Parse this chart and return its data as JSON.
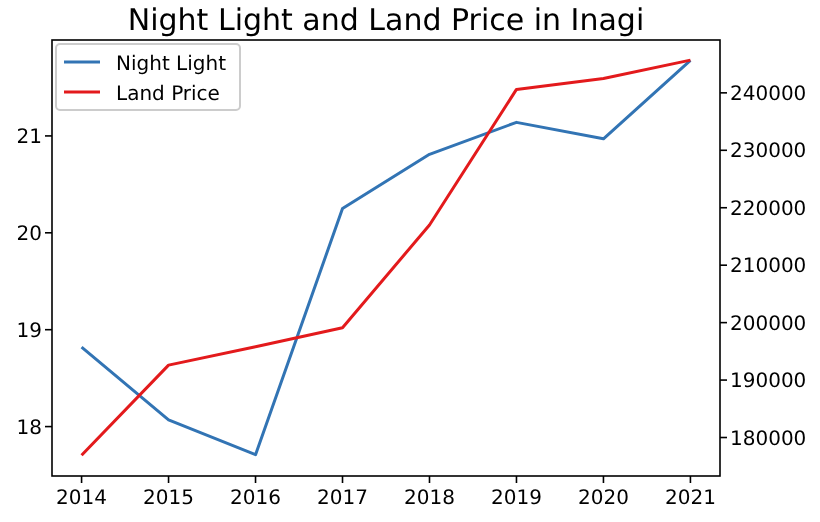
{
  "chart_data": {
    "type": "line",
    "title": "Night Light and Land Price in Inagi",
    "x": [
      2014,
      2015,
      2016,
      2017,
      2018,
      2019,
      2020,
      2021
    ],
    "xlim": [
      2013.66,
      2021.34
    ],
    "xticks": [
      2014,
      2015,
      2016,
      2017,
      2018,
      2019,
      2020,
      2021
    ],
    "ylim": [
      17.49,
      21.99
    ],
    "yticks": [
      18,
      19,
      20,
      21
    ],
    "y2lim": [
      173300,
      249200
    ],
    "y2ticks": [
      180000,
      190000,
      200000,
      210000,
      220000,
      230000,
      240000
    ],
    "legend": "top left",
    "series": [
      {
        "name": "Night Light",
        "color": "#3274b4",
        "values": [
          18.82,
          18.07,
          17.71,
          20.25,
          20.81,
          21.14,
          20.97,
          21.78
        ]
      },
      {
        "name": "Land Price",
        "color": "#e31a1c",
        "axis": "y2",
        "values": [
          176900,
          192600,
          195800,
          199100,
          217000,
          240600,
          242500,
          245700
        ]
      }
    ]
  }
}
